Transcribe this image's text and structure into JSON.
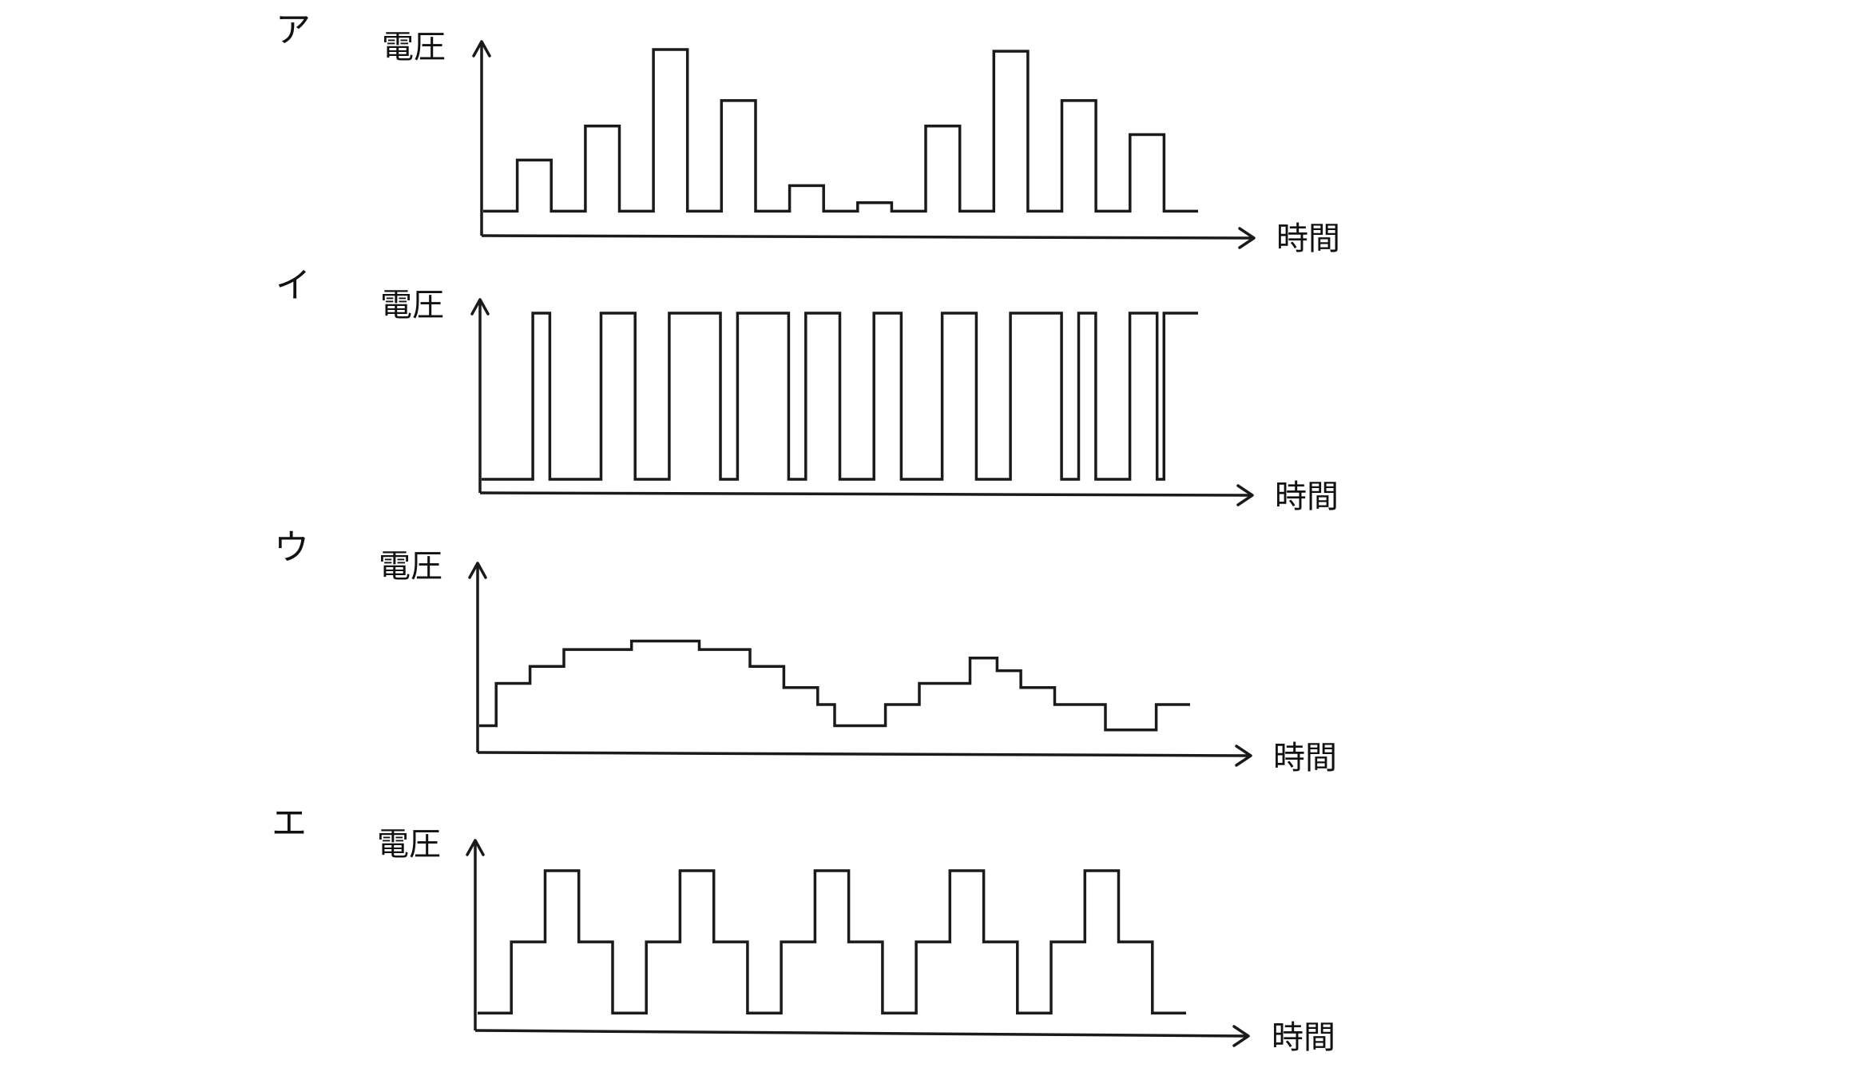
{
  "panels": [
    {
      "id": "a",
      "label": "ア",
      "y_label": "電圧",
      "x_label": "時間",
      "signal": "sampled pulses",
      "steps": [
        [
          0,
          0.05
        ],
        [
          1,
          0.35
        ],
        [
          2,
          0.05
        ],
        [
          3,
          0.55
        ],
        [
          4,
          0.05
        ],
        [
          5,
          1.0
        ],
        [
          6,
          0.05
        ],
        [
          7,
          0.7
        ],
        [
          8,
          0.05
        ],
        [
          9,
          0.2
        ],
        [
          10,
          0.05
        ],
        [
          11,
          0.1
        ],
        [
          12,
          0.05
        ],
        [
          13,
          0.55
        ],
        [
          14,
          0.05
        ],
        [
          15,
          0.99
        ],
        [
          16,
          0.05
        ],
        [
          17,
          0.7
        ],
        [
          18,
          0.05
        ],
        [
          19,
          0.5
        ],
        [
          20,
          0.05
        ],
        [
          21,
          0.05
        ]
      ]
    },
    {
      "id": "i",
      "label": "イ",
      "y_label": "電圧",
      "x_label": "時間",
      "signal": "binary pulse train",
      "steps": [
        [
          0,
          0
        ],
        [
          1.5,
          1
        ],
        [
          2,
          0
        ],
        [
          3.5,
          1
        ],
        [
          4.5,
          0
        ],
        [
          5.5,
          1
        ],
        [
          7,
          0
        ],
        [
          7.5,
          1
        ],
        [
          9,
          0
        ],
        [
          9.5,
          1
        ],
        [
          10.5,
          0
        ],
        [
          11.5,
          1
        ],
        [
          12.3,
          0
        ],
        [
          13.5,
          1
        ],
        [
          14.5,
          0
        ],
        [
          15.5,
          1
        ],
        [
          17,
          0
        ],
        [
          17.5,
          1
        ],
        [
          18,
          0
        ],
        [
          19,
          1
        ],
        [
          19.8,
          0
        ],
        [
          20,
          1
        ],
        [
          21,
          1
        ]
      ]
    },
    {
      "id": "u",
      "label": "ウ",
      "y_label": "電圧",
      "x_label": "時間",
      "signal": "stepped analog waveform",
      "steps": [
        [
          0,
          0.1
        ],
        [
          0.5,
          0.3
        ],
        [
          1.5,
          0.38
        ],
        [
          2.5,
          0.46
        ],
        [
          4.5,
          0.5
        ],
        [
          6.5,
          0.46
        ],
        [
          8,
          0.38
        ],
        [
          9,
          0.28
        ],
        [
          10,
          0.2
        ],
        [
          10.5,
          0.1
        ],
        [
          12,
          0.2
        ],
        [
          13,
          0.3
        ],
        [
          14.5,
          0.42
        ],
        [
          15.3,
          0.36
        ],
        [
          16,
          0.28
        ],
        [
          17,
          0.2
        ],
        [
          18.5,
          0.08
        ],
        [
          20,
          0.2
        ],
        [
          21,
          0.2
        ]
      ]
    },
    {
      "id": "e",
      "label": "エ",
      "y_label": "電圧",
      "x_label": "時間",
      "signal": "periodic stepped pulses",
      "steps": [
        [
          0,
          0.1
        ],
        [
          1,
          0.55
        ],
        [
          2,
          1
        ],
        [
          3,
          0.55
        ],
        [
          4,
          0.1
        ],
        [
          5,
          0.55
        ],
        [
          6,
          1
        ],
        [
          7,
          0.55
        ],
        [
          8,
          0.1
        ],
        [
          9,
          0.55
        ],
        [
          10,
          1
        ],
        [
          11,
          0.55
        ],
        [
          12,
          0.1
        ],
        [
          13,
          0.55
        ],
        [
          14,
          1
        ],
        [
          15,
          0.55
        ],
        [
          16,
          0.1
        ],
        [
          17,
          0.55
        ],
        [
          18,
          1
        ],
        [
          19,
          0.55
        ],
        [
          20,
          0.1
        ],
        [
          21,
          0.1
        ]
      ]
    }
  ],
  "colors": {
    "line": "#1a1a1a",
    "background": "#ffffff"
  }
}
